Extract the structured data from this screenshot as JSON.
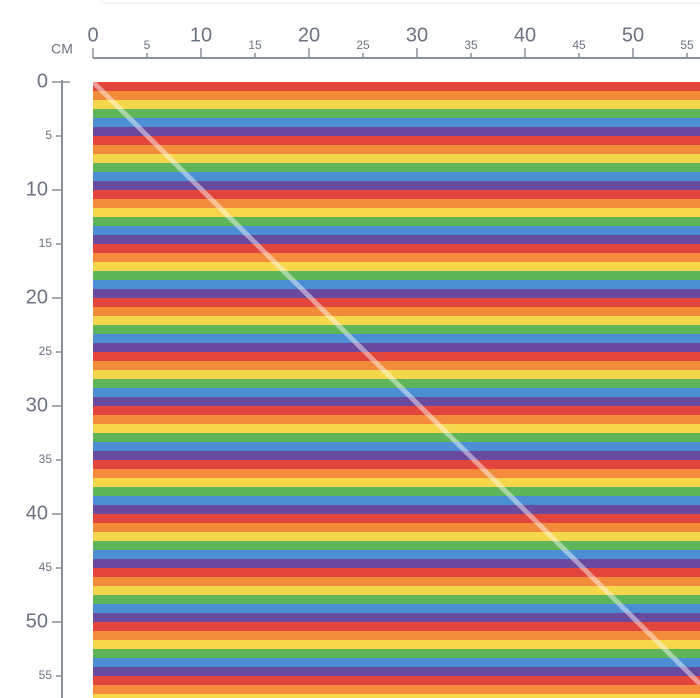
{
  "ruler": {
    "unit": "CM",
    "top_ticks": [
      0,
      5,
      10,
      15,
      20,
      25,
      30,
      35,
      40,
      45,
      50,
      55
    ],
    "left_ticks": [
      0,
      5,
      10,
      15,
      20,
      25,
      30,
      35,
      40,
      45,
      50,
      55
    ]
  }
}
